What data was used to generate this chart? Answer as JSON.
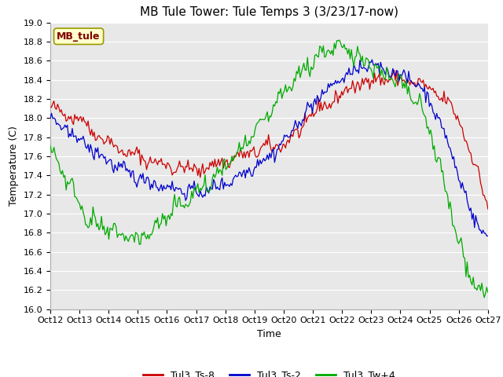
{
  "title": "MB Tule Tower: Tule Temps 3 (3/23/17-now)",
  "xlabel": "Time",
  "ylabel": "Temperature (C)",
  "ylim": [
    16.0,
    19.0
  ],
  "yticks": [
    16.0,
    16.2,
    16.4,
    16.6,
    16.8,
    17.0,
    17.2,
    17.4,
    17.6,
    17.8,
    18.0,
    18.2,
    18.4,
    18.6,
    18.8,
    19.0
  ],
  "xtick_labels": [
    "Oct 12",
    "Oct 13",
    "Oct 14",
    "Oct 15",
    "Oct 16",
    "Oct 17",
    "Oct 18",
    "Oct 19",
    "Oct 20",
    "Oct 21",
    "Oct 22",
    "Oct 23",
    "Oct 24",
    "Oct 25",
    "Oct 26",
    "Oct 27"
  ],
  "legend_entries": [
    "Tul3_Ts-8",
    "Tul3_Ts-2",
    "Tul3_Tw+4"
  ],
  "legend_colors": [
    "#cc0000",
    "#0000cc",
    "#00aa00"
  ],
  "line_colors": [
    "#cc0000",
    "#0000cc",
    "#00aa00"
  ],
  "station_label": "MB_tule",
  "station_label_color": "#800000",
  "station_box_facecolor": "#ffffcc",
  "station_box_edgecolor": "#999900",
  "fig_facecolor": "#ffffff",
  "plot_bg_color": "#e8e8e8",
  "grid_color": "#ffffff",
  "title_fontsize": 11,
  "axis_fontsize": 9,
  "tick_fontsize": 8,
  "legend_fontsize": 9
}
